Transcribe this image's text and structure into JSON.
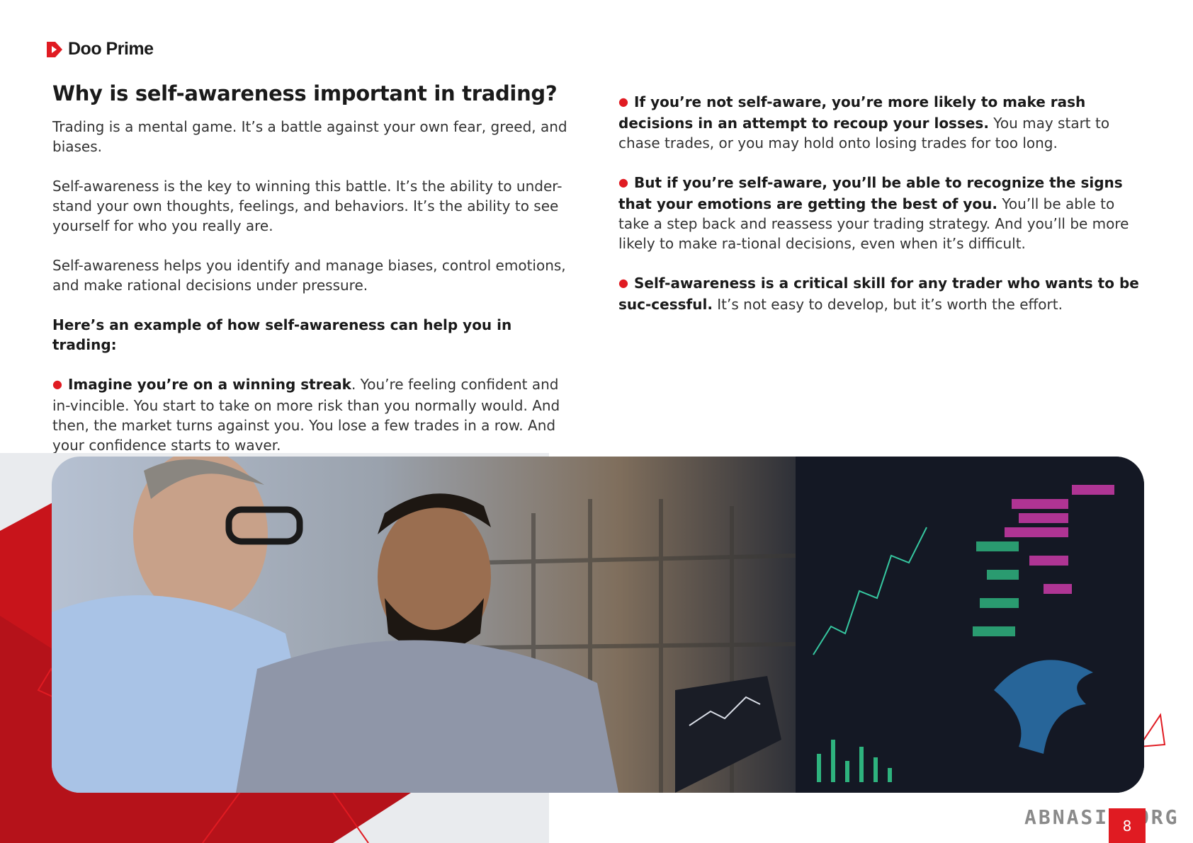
{
  "logo": {
    "text": "Doo Prime",
    "brand_color": "#e01b22"
  },
  "left": {
    "title": "Why is self-awareness important in trading?",
    "paragraphs": [
      "Trading is a mental game. It’s a battle against your own fear, greed, and biases.",
      "Self-awareness is the key to winning this battle. It’s the ability to under-stand your own thoughts, feelings, and behaviors. It’s the ability to see yourself for who you really are.",
      "Self-awareness helps you identify and manage biases, control emotions, and make rational decisions under pressure."
    ],
    "example_heading": "Here’s an example of how self-awareness can help you in trading:",
    "bullet": {
      "bold": "Imagine you’re on a winning streak",
      "text": ". You’re feeling confident and in-vincible. You start to take on more risk than you normally would. And then, the market turns against you. You lose a few trades in a row. And your confidence starts to waver."
    }
  },
  "right": {
    "bullets": [
      {
        "bold": "If you’re not self-aware, you’re more likely to make rash decisions in an attempt to recoup your losses.",
        "text": " You may start to chase trades, or you may hold onto losing trades for too long."
      },
      {
        "bold": "But if you’re self-aware, you’ll be able to recognize the signs that your emotions are getting the best of you.",
        "text": " You’ll be able to take a step back and reassess your trading strategy. And you’ll be more likely to make ra-tional decisions, even when it’s difficult."
      },
      {
        "bold": "Self-awareness is a critical skill for any trader who wants to be suc-cessful.",
        "text": " It’s not easy to develop, but it’s worth the effort."
      }
    ]
  },
  "photo": {
    "icon": "traders-at-screens-photo"
  },
  "footer": {
    "page_number": "8",
    "watermark": "ABNASIA.ORG"
  }
}
